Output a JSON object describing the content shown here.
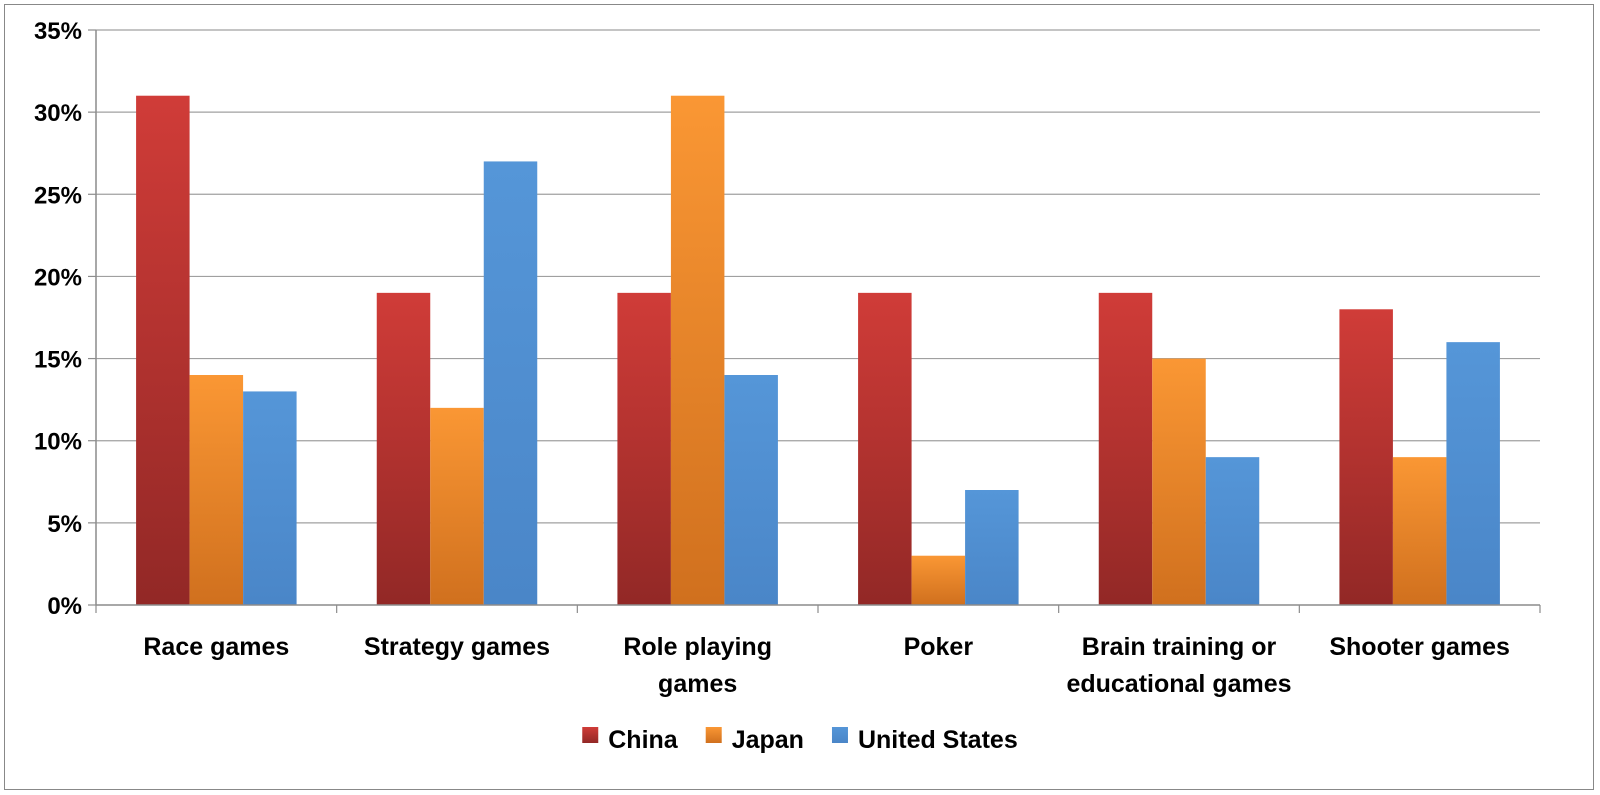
{
  "chart_data": {
    "type": "bar",
    "categories": [
      [
        "Race games"
      ],
      [
        "Strategy games"
      ],
      [
        "Role playing",
        "games"
      ],
      [
        "Poker"
      ],
      [
        "Brain training or",
        "educational games"
      ],
      [
        "Shooter games"
      ]
    ],
    "series": [
      {
        "name": "China",
        "values": [
          31,
          19,
          19,
          19,
          19,
          18
        ]
      },
      {
        "name": "Japan",
        "values": [
          14,
          12,
          31,
          3,
          15,
          9
        ]
      },
      {
        "name": "United States",
        "values": [
          13,
          27,
          14,
          7,
          9,
          16
        ]
      }
    ],
    "y_ticks": [
      "0%",
      "5%",
      "10%",
      "15%",
      "20%",
      "25%",
      "30%",
      "35%"
    ],
    "ylim": [
      0,
      35
    ],
    "unit": "%",
    "grid": true,
    "legend_position": "bottom",
    "colors": {
      "China": [
        "#d03c38",
        "#922826"
      ],
      "Japan": [
        "#fa9734",
        "#d0701e"
      ],
      "United States": [
        "#5596d8",
        "#4a86c8"
      ],
      "gridline": "#a0a0a0",
      "axis": "#8c8c8c"
    }
  }
}
